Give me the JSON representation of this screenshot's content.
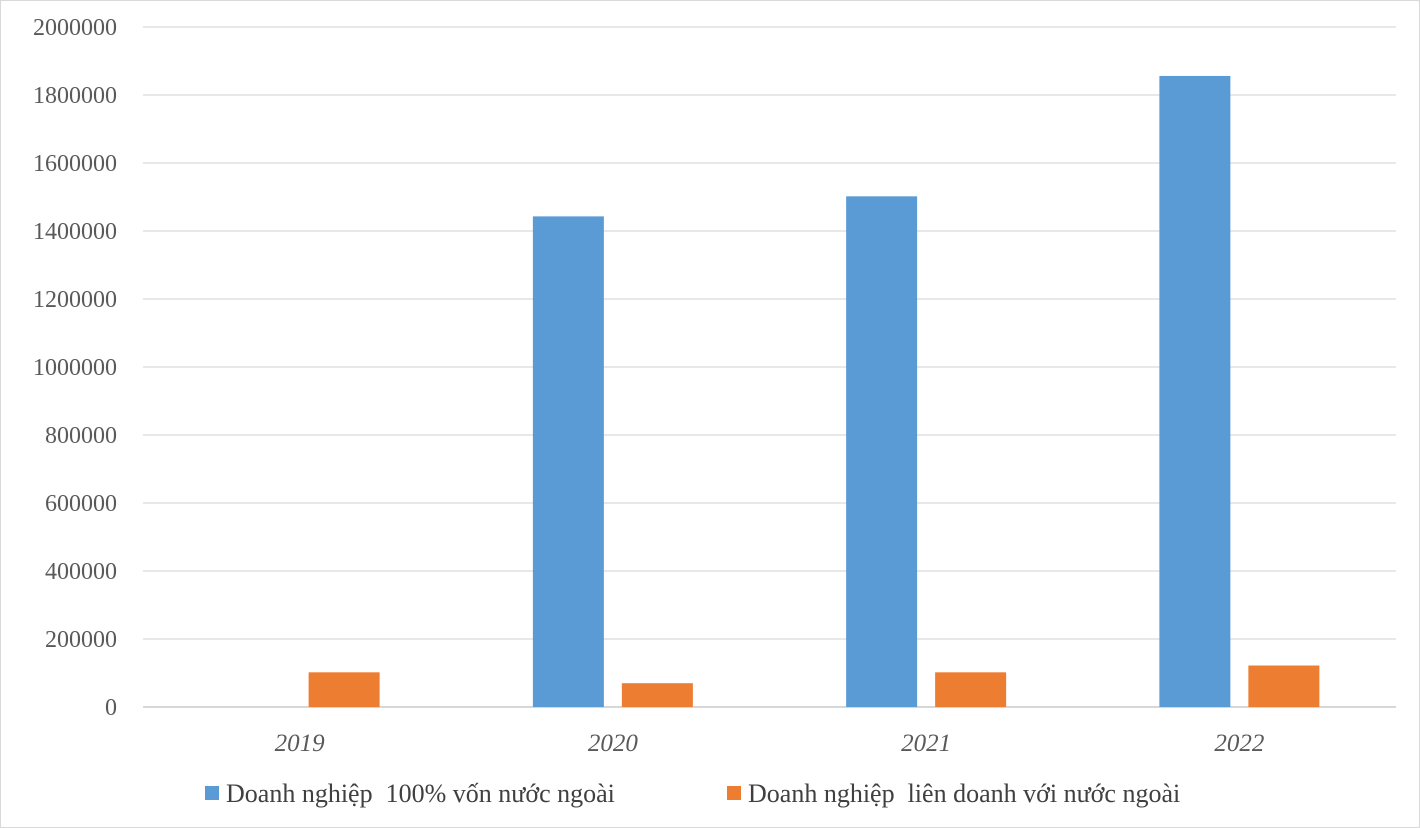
{
  "chart_data": {
    "type": "bar",
    "categories": [
      "2019",
      "2020",
      "2021",
      "2022"
    ],
    "series": [
      {
        "name": "Doanh nghiệp  100% vốn nước ngoài",
        "color": "#5b9bd5",
        "values": [
          0,
          1443000,
          1502000,
          1856000
        ]
      },
      {
        "name": "Doanh nghiệp  liên doanh với nước ngoài",
        "color": "#ed7d31",
        "values": [
          102000,
          70000,
          102000,
          122000
        ]
      }
    ],
    "ylim": [
      0,
      2000000
    ],
    "yticks": [
      "0",
      "200000",
      "400000",
      "600000",
      "800000",
      "1000000",
      "1200000",
      "1400000",
      "1600000",
      "1800000",
      "2000000"
    ],
    "grid": true,
    "gridline_color": "#d9d9d9",
    "legend_position": "bottom"
  }
}
